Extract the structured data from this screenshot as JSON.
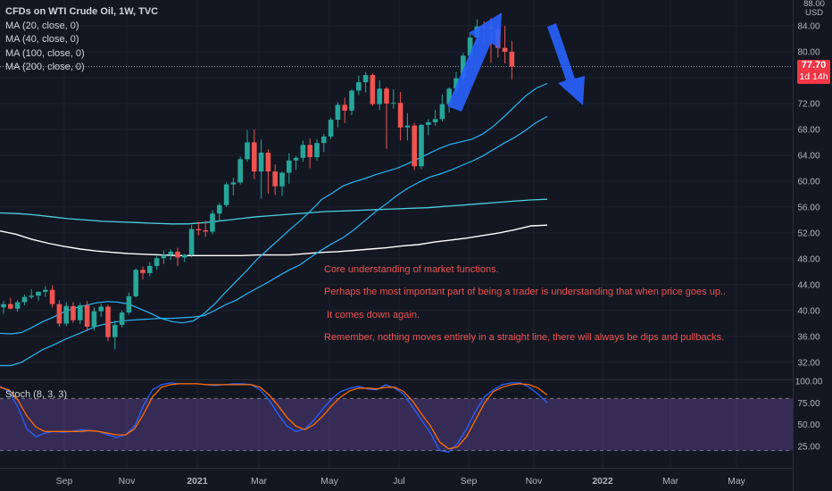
{
  "legend": {
    "title": "CFDs on WTI Crude Oil, 1W, TVC",
    "ma20": "MA (20, close, 0)",
    "ma40": "MA (40, close, 0)",
    "ma100": "MA (100, close, 0)",
    "ma200": "MA (200, close, 0)"
  },
  "price_badge": {
    "price": "77.70",
    "countdown": "1d 14h"
  },
  "axis_unit": {
    "currency": "USD",
    "number": "88.00"
  },
  "notes": [
    "Core understanding of market functions.",
    "Perhaps the most important part of being a trader is understanding that when price goes up..",
    " It comes down again.",
    "Remember, nothing moves entirely in a straight line, there will always be dips and pullbacks."
  ],
  "stoch_label": "Stoch (8, 3, 3)",
  "colors": {
    "background": "#131722",
    "up": "#26a69a",
    "down": "#ef5350",
    "ma20": "#29b6f6",
    "ma40": "#29b6f6",
    "ma100": "#4dd0e1",
    "ma200": "#ffffff",
    "stoch_k": "#2962ff",
    "stoch_d": "#ff6d00",
    "stoch_band": "#7e57c2",
    "arrow": "#2962ff",
    "note_text": "#ef5350"
  },
  "chart_data": {
    "type": "candlestick",
    "ylim": [
      29.5,
      88
    ],
    "y_ticks": [
      "32.00",
      "36.00",
      "40.00",
      "44.00",
      "48.00",
      "52.00",
      "56.00",
      "60.00",
      "64.00",
      "68.00",
      "72.00",
      "76.00",
      "80.00",
      "84.00"
    ],
    "x_ticks": [
      "Sep",
      "Nov",
      "2021",
      "Mar",
      "May",
      "Jul",
      "Sep",
      "Nov",
      "2022",
      "Mar",
      "May"
    ],
    "stoch_ticks": [
      "25.00",
      "50.00",
      "75.00",
      "100.00"
    ],
    "stoch_band": [
      20,
      80
    ],
    "current_price": 77.7,
    "candles": [
      [
        40.5,
        41.5,
        39.5,
        41.0
      ],
      [
        41.0,
        42.0,
        40.2,
        40.3
      ],
      [
        40.3,
        41.6,
        39.8,
        41.3
      ],
      [
        41.3,
        42.5,
        40.8,
        42.1
      ],
      [
        42.1,
        43.3,
        41.8,
        42.3
      ],
      [
        42.3,
        43.0,
        41.5,
        42.9
      ],
      [
        42.9,
        43.8,
        42.1,
        43.2
      ],
      [
        43.2,
        43.9,
        40.5,
        41.0
      ],
      [
        41.0,
        41.6,
        37.5,
        38.0
      ],
      [
        38.0,
        41.3,
        37.6,
        40.7
      ],
      [
        40.7,
        41.3,
        38.1,
        38.5
      ],
      [
        38.5,
        41.2,
        37.9,
        40.8
      ],
      [
        40.8,
        41.5,
        36.8,
        37.5
      ],
      [
        37.5,
        40.5,
        36.9,
        39.9
      ],
      [
        39.9,
        41.0,
        39.0,
        40.6
      ],
      [
        40.6,
        40.9,
        35.3,
        35.9
      ],
      [
        35.9,
        38.5,
        34.0,
        37.8
      ],
      [
        37.8,
        40.0,
        37.4,
        39.7
      ],
      [
        39.7,
        42.8,
        39.4,
        42.2
      ],
      [
        42.2,
        46.5,
        42.0,
        46.3
      ],
      [
        46.3,
        46.8,
        44.8,
        45.8
      ],
      [
        45.8,
        47.5,
        45.3,
        46.9
      ],
      [
        46.9,
        48.6,
        46.3,
        48.1
      ],
      [
        48.1,
        49.3,
        47.2,
        48.6
      ],
      [
        48.6,
        49.5,
        47.8,
        49.1
      ],
      [
        49.1,
        49.7,
        46.9,
        48.2
      ],
      [
        48.2,
        48.8,
        47.5,
        48.6
      ],
      [
        48.6,
        53.2,
        48.2,
        52.6
      ],
      [
        52.6,
        53.7,
        51.6,
        52.4
      ],
      [
        52.4,
        53.9,
        51.4,
        52.2
      ],
      [
        52.2,
        55.5,
        51.8,
        55.0
      ],
      [
        55.0,
        56.7,
        53.8,
        56.3
      ],
      [
        56.3,
        59.8,
        56.0,
        59.5
      ],
      [
        59.5,
        60.5,
        57.8,
        59.8
      ],
      [
        59.8,
        63.8,
        59.5,
        63.4
      ],
      [
        63.4,
        67.9,
        63.0,
        66.0
      ],
      [
        66.0,
        68.0,
        60.3,
        61.5
      ],
      [
        61.5,
        66.4,
        57.3,
        64.4
      ],
      [
        64.4,
        64.9,
        58.1,
        61.5
      ],
      [
        61.5,
        62.6,
        57.9,
        59.2
      ],
      [
        59.2,
        61.5,
        57.7,
        61.3
      ],
      [
        61.3,
        64.3,
        59.6,
        63.2
      ],
      [
        63.2,
        63.9,
        61.7,
        63.6
      ],
      [
        63.6,
        66.3,
        63.0,
        65.6
      ],
      [
        65.6,
        66.6,
        62.0,
        63.7
      ],
      [
        63.7,
        66.5,
        63.2,
        65.9
      ],
      [
        65.9,
        67.3,
        64.5,
        66.9
      ],
      [
        66.9,
        69.8,
        66.5,
        69.5
      ],
      [
        69.5,
        72.2,
        68.3,
        71.8
      ],
      [
        71.8,
        72.9,
        69.0,
        70.9
      ],
      [
        70.9,
        74.2,
        70.2,
        74.0
      ],
      [
        74.0,
        76.3,
        73.3,
        75.3
      ],
      [
        75.3,
        76.9,
        73.7,
        76.4
      ],
      [
        76.4,
        76.7,
        71.6,
        71.9
      ],
      [
        71.9,
        75.6,
        71.0,
        74.3
      ],
      [
        74.3,
        74.6,
        65.0,
        72.0
      ],
      [
        72.0,
        74.2,
        71.2,
        72.1
      ],
      [
        72.1,
        73.8,
        66.3,
        68.3
      ],
      [
        68.3,
        70.5,
        66.3,
        68.6
      ],
      [
        68.6,
        69.0,
        61.7,
        62.3
      ],
      [
        62.3,
        68.8,
        61.8,
        68.7
      ],
      [
        68.7,
        69.6,
        67.1,
        69.1
      ],
      [
        69.1,
        71.0,
        68.6,
        69.6
      ],
      [
        69.6,
        73.4,
        69.2,
        71.9
      ],
      [
        71.9,
        74.5,
        70.6,
        74.3
      ],
      [
        74.3,
        76.9,
        73.6,
        75.9
      ],
      [
        75.9,
        79.8,
        74.9,
        79.4
      ],
      [
        79.4,
        82.8,
        78.6,
        82.2
      ],
      [
        82.2,
        85.0,
        81.0,
        83.9
      ],
      [
        83.9,
        84.7,
        81.4,
        83.8
      ],
      [
        83.8,
        85.2,
        78.3,
        83.6
      ],
      [
        83.6,
        84.1,
        79.1,
        80.6
      ],
      [
        80.6,
        84.0,
        78.2,
        80.0
      ],
      [
        80.0,
        81.7,
        75.7,
        77.7
      ]
    ],
    "ma20": [
      36.5,
      36.4,
      36.6,
      37.4,
      38.3,
      39.0,
      39.8,
      40.4,
      40.8,
      41.2,
      41.4,
      41.3,
      41.0,
      40.3,
      39.6,
      38.8,
      38.3,
      38.1,
      38.4,
      39.5,
      41.0,
      42.8,
      44.5,
      46.2,
      48.0,
      49.5,
      51.0,
      52.5,
      53.9,
      55.5,
      57.2,
      58.2,
      59.3,
      59.9,
      60.4,
      61.0,
      61.5,
      62.0,
      62.7,
      63.5,
      64.3,
      65.1,
      65.7,
      66.1,
      66.5,
      67.3,
      68.5,
      70.0,
      71.6,
      73.2,
      74.4,
      75.1
    ],
    "ma40": [
      31.5,
      31.5,
      32.0,
      33.0,
      34.0,
      34.7,
      35.5,
      36.2,
      36.9,
      37.6,
      38.0,
      38.3,
      38.5,
      38.6,
      38.7,
      38.8,
      38.8,
      38.9,
      39.0,
      39.2,
      40.0,
      40.9,
      41.6,
      42.6,
      43.5,
      44.4,
      45.4,
      46.3,
      47.1,
      48.3,
      49.4,
      50.4,
      51.3,
      52.5,
      53.9,
      55.3,
      56.5,
      57.8,
      58.9,
      59.8,
      60.6,
      61.1,
      61.7,
      62.4,
      63.1,
      63.9,
      64.9,
      65.9,
      66.8,
      67.9,
      69.1,
      70.0
    ],
    "ma100": [
      55.1,
      55.0,
      54.8,
      54.5,
      54.2,
      54.0,
      53.8,
      53.7,
      53.6,
      53.5,
      53.4,
      53.4,
      53.6,
      53.9,
      54.2,
      54.5,
      54.7,
      54.9,
      55.1,
      55.3,
      55.4,
      55.5,
      55.6,
      55.7,
      55.8,
      55.9,
      56.1,
      56.3,
      56.5,
      56.7,
      56.9,
      57.1,
      57.2
    ],
    "ma200": [
      52.3,
      51.8,
      51.0,
      50.4,
      49.9,
      49.5,
      49.2,
      49.0,
      48.8,
      48.7,
      48.6,
      48.5,
      48.5,
      48.5,
      48.5,
      48.5,
      48.6,
      48.6,
      48.6,
      48.8,
      49.0,
      49.1,
      49.3,
      49.5,
      49.7,
      50.0,
      50.2,
      50.6,
      50.9,
      51.2,
      51.6,
      52.0,
      52.5,
      53.1,
      53.2
    ],
    "stoch_k": [
      94,
      88,
      70,
      45,
      36,
      40,
      42,
      41,
      42,
      44,
      43,
      42,
      38,
      35,
      38,
      48,
      72,
      90,
      96,
      98,
      97,
      97,
      97,
      96,
      95,
      96,
      97,
      97,
      96,
      90,
      78,
      62,
      48,
      42,
      45,
      55,
      68,
      80,
      88,
      92,
      94,
      91,
      90,
      96,
      92,
      85,
      70,
      55,
      40,
      20,
      18,
      28,
      45,
      65,
      82,
      90,
      96,
      98,
      98,
      93,
      85,
      75
    ],
    "stoch_d": [
      93,
      90,
      78,
      60,
      47,
      42,
      42,
      42,
      42,
      42,
      43,
      42,
      40,
      38,
      38,
      45,
      62,
      82,
      93,
      96,
      97,
      97,
      97,
      96,
      96,
      96,
      96,
      96,
      96,
      93,
      84,
      72,
      58,
      48,
      44,
      50,
      60,
      72,
      82,
      89,
      92,
      92,
      91,
      93,
      93,
      88,
      77,
      62,
      48,
      30,
      22,
      24,
      36,
      55,
      75,
      88,
      93,
      96,
      97,
      96,
      92,
      84
    ]
  }
}
